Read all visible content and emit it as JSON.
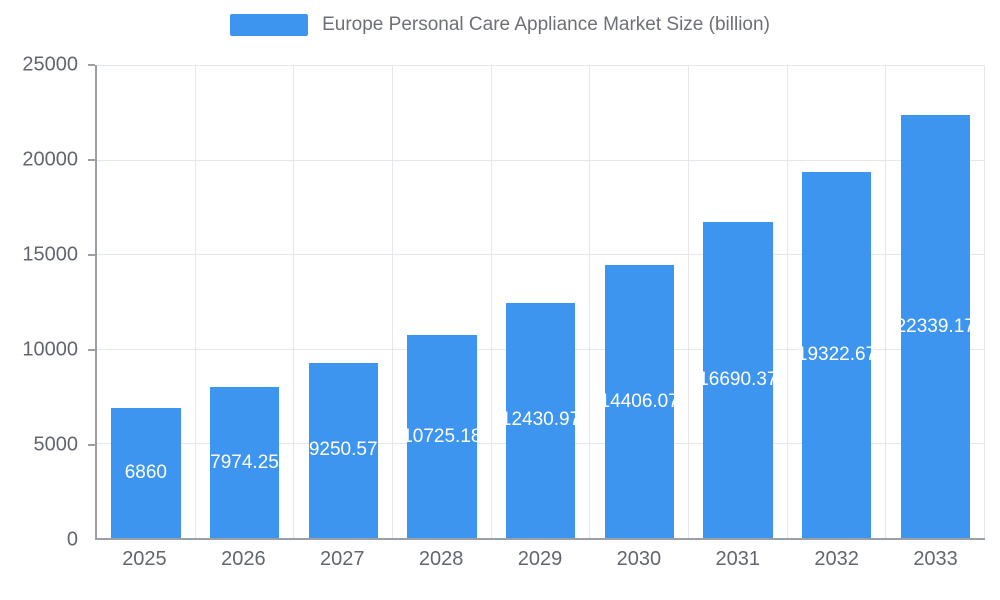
{
  "colors": {
    "bar": "#3E95EF",
    "grid": "#E4E7EC",
    "axis_line": "#9AA0A6",
    "axis_label": "#62666D",
    "title": "#6E7079",
    "value_label": "#FFFFFF",
    "background": "#FFFFFF"
  },
  "legend": {
    "label": "Europe Personal Care Appliance Market Size (billion)"
  },
  "y_axis": {
    "tick_labels": [
      "25000",
      "20000",
      "15000",
      "10000",
      "5000",
      "0"
    ]
  },
  "chart_data": {
    "type": "bar",
    "title": "Europe Personal Care Appliance Market Size (billion)",
    "categories": [
      "2025",
      "2026",
      "2027",
      "2028",
      "2029",
      "2030",
      "2031",
      "2032",
      "2033"
    ],
    "values": [
      6860,
      7974.25,
      9250.57,
      10725.18,
      12430.97,
      14406.07,
      16690.37,
      19322.67,
      22339.17
    ],
    "labels": [
      "6860",
      "7974.25",
      "9250.57",
      "10725.18",
      "12430.97",
      "14406.07",
      "16690.37",
      "19322.67",
      "22339.17"
    ],
    "xlabel": "",
    "ylabel": "",
    "ylim": [
      0,
      25000
    ],
    "yticks": [
      0,
      5000,
      10000,
      15000,
      20000,
      25000
    ],
    "grid": true,
    "legend_position": "top-center",
    "value_labels": "centered-white-inside-bars"
  }
}
